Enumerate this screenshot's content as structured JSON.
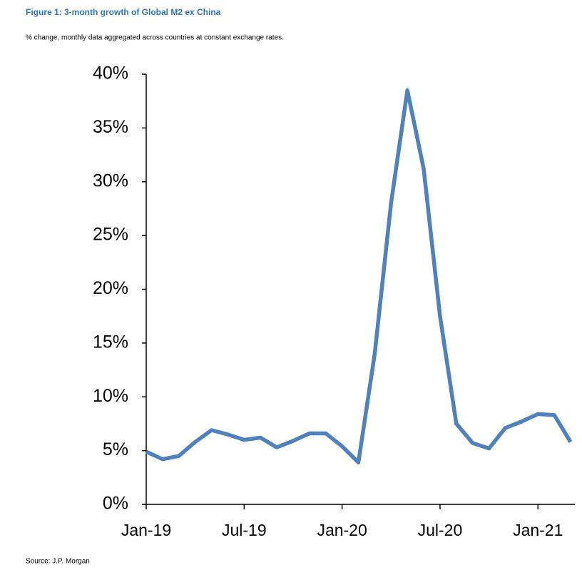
{
  "chart_data": {
    "type": "line",
    "title": "Figure 1: 3-month growth of Global M2 ex China",
    "subtitle": "% change, monthly data aggregated across countries at constant exchange rates.",
    "source": "Source: J.P. Morgan",
    "categories": [
      "Jan-19",
      null,
      null,
      null,
      null,
      null,
      "Jul-19",
      null,
      null,
      null,
      null,
      null,
      "Jan-20",
      null,
      null,
      null,
      null,
      null,
      "Jul-20",
      null,
      null,
      null,
      null,
      null,
      "Jan-21",
      null,
      null
    ],
    "series": [
      {
        "name": "Global M2 ex China",
        "color": "#4f81bd",
        "values": [
          4.9,
          4.2,
          4.5,
          5.8,
          6.9,
          6.5,
          6.0,
          6.2,
          5.3,
          5.9,
          6.6,
          6.6,
          5.4,
          3.9,
          14.0,
          28.0,
          38.5,
          31.2,
          17.5,
          7.5,
          5.7,
          5.2,
          7.1,
          7.7,
          8.4,
          8.3,
          5.8
        ]
      }
    ],
    "ylim": [
      0,
      40
    ],
    "yticks": [
      {
        "value": 0,
        "label": "0%"
      },
      {
        "value": 5,
        "label": "5%"
      },
      {
        "value": 10,
        "label": "10%"
      },
      {
        "value": 15,
        "label": "15%"
      },
      {
        "value": 20,
        "label": "20%"
      },
      {
        "value": 25,
        "label": "25%"
      },
      {
        "value": 30,
        "label": "30%"
      },
      {
        "value": 35,
        "label": "35%"
      },
      {
        "value": 40,
        "label": "40%"
      }
    ]
  }
}
